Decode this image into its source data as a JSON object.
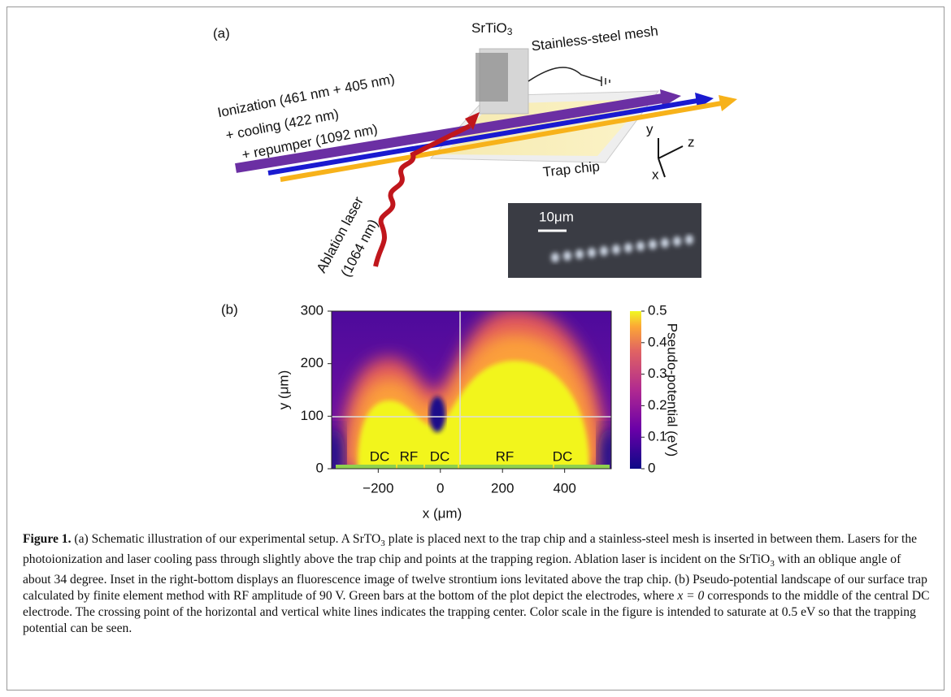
{
  "figure": {
    "panel_a": {
      "label": "(a)",
      "srtio3": "SrTiO",
      "srtio3_sub": "3",
      "mesh": "Stainless-steel mesh",
      "beam_lines": [
        "Ionization (461 nm + 405 nm)",
        "+ cooling (422 nm)",
        "+ repumper (1092 nm)"
      ],
      "chip": "Trap chip",
      "axes": [
        "y",
        "z",
        "x"
      ],
      "ablation": [
        "Ablation laser",
        "(1064 nm)"
      ],
      "scale_bar": "10μm"
    },
    "panel_b": {
      "label": "(b)",
      "xlabel": "x (μm)",
      "ylabel": "y (μm)",
      "xlim": [
        -350,
        550
      ],
      "xticks": [
        {
          "value": -200,
          "label": "−200"
        },
        0,
        200,
        400
      ],
      "ylim": [
        0,
        300
      ],
      "yticks": [
        0,
        100,
        200,
        300
      ],
      "electrodes": [
        "DC",
        "RF",
        "DC",
        "RF",
        "DC"
      ],
      "colorbar": {
        "label": "Pseudo-potential (eV)",
        "lim": [
          0,
          0.5
        ],
        "ticks": [
          0,
          0.1,
          0.2,
          0.3,
          0.4,
          0.5
        ]
      }
    },
    "caption": [
      "Figure 1.",
      " (a) Schematic illustration of our experimental setup. A SrTO",
      "3",
      " plate is placed next to the trap chip and a stainless-steel mesh is inserted in between them. Lasers for the photoionization and laser cooling pass through slightly above the trap chip and points at the trapping region. Ablation laser is incident on the SrTiO",
      "3",
      " with an oblique angle of about 34 degree. Inset in the right-bottom displays an fluorescence image of twelve strontium ions levitated above the trap chip. (b) Pseudo-potential landscape of our surface trap calculated by finite element method with RF amplitude of 90 V. Green bars at the bottom of the plot depict the electrodes, where ",
      "x = 0",
      " corresponds to the middle of the central DC electrode. The crossing point of the horizontal and vertical white lines indicates the trapping center. Color scale in the figure is intended to saturate at 0.5 eV so that the trapping potential can be seen."
    ]
  }
}
